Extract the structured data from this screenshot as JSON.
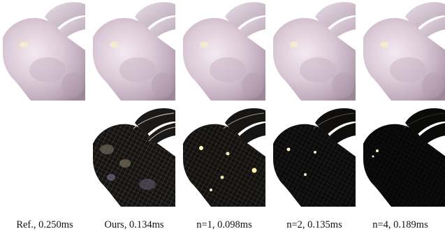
{
  "figure": {
    "captions": [
      "Ref., 0.250ms",
      "Ours, 0.134ms",
      "n=1, 0.098ms",
      "n=2, 0.135ms",
      "n=4, 0.189ms"
    ],
    "rows": [
      {
        "kind": "render",
        "label": "shaded bunny renders"
      },
      {
        "kind": "error",
        "label": "error visualization"
      }
    ],
    "colors": {
      "bunny_light": "#e8dde8",
      "bunny_mid": "#c9b6c6",
      "bunny_shadow": "#8f7c8a",
      "error_bg": "#000000"
    }
  }
}
